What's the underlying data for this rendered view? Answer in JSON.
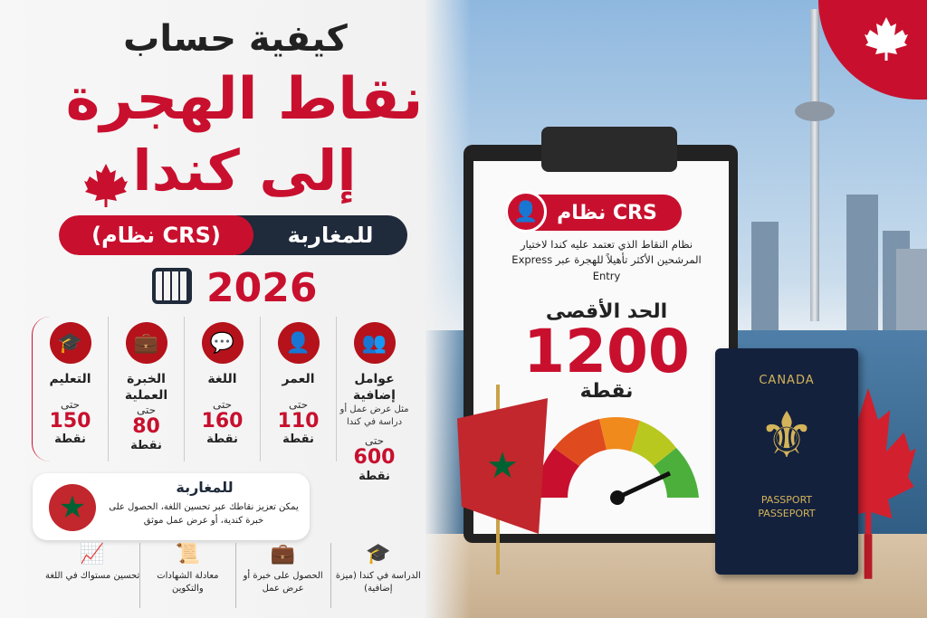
{
  "title": {
    "line1": "كيفية حساب",
    "line2": "نقاط الهجرة",
    "line3": "إلى كندا",
    "audience": "للمغاربة",
    "system": "(نظام CRS)",
    "year": "2026"
  },
  "categories": [
    {
      "name": "عوامل إضافية",
      "sub": "مثل عرض عمل أو دراسة في كندا",
      "upto": "حتى",
      "points": "600",
      "unit": "نقطة",
      "icon": "people-icon"
    },
    {
      "name": "العمر",
      "sub": "",
      "upto": "حتى",
      "points": "110",
      "unit": "نقطة",
      "icon": "person-icon"
    },
    {
      "name": "اللغة",
      "sub": "",
      "upto": "حتى",
      "points": "160",
      "unit": "نقطة",
      "icon": "chat-icon"
    },
    {
      "name": "الخبرة العملية",
      "sub": "",
      "upto": "حتى",
      "points": "80",
      "unit": "نقطة",
      "icon": "briefcase-icon"
    },
    {
      "name": "التعليم",
      "sub": "",
      "upto": "حتى",
      "points": "150",
      "unit": "نقطة",
      "icon": "graduation-cap-icon"
    }
  ],
  "moroccans": {
    "title": "للمغاربة",
    "text": "يمكن تعزيز نقاطك عبر تحسين اللغة، الحصول على خبرة كندية، أو عرض عمل موثق"
  },
  "tips": [
    {
      "text": "الدراسة في كندا (ميزة إضافية)",
      "icon": "graduation-cap-icon"
    },
    {
      "text": "الحصول على خبرة أو عرض عمل",
      "icon": "briefcase-icon"
    },
    {
      "text": "معادلة الشهادات والتكوين",
      "icon": "certificate-icon"
    },
    {
      "text": "تحسين مستواك في اللغة",
      "icon": "chart-up-icon"
    }
  ],
  "clipboard": {
    "badge": "نظام CRS",
    "desc": "نظام النقاط الذي تعتمد عليه كندا لاختيار المرشحين الأكثر تأهيلاً للهجرة عبر Express Entry",
    "max_label": "الحد الأقصى",
    "max_value": "1200",
    "unit": "نقطة"
  },
  "passport": {
    "country": "CANADA",
    "label1": "PASSPORT",
    "label2": "PASSEPORT"
  },
  "colors": {
    "accent": "#c8102e",
    "navy": "#1f2a3a"
  }
}
